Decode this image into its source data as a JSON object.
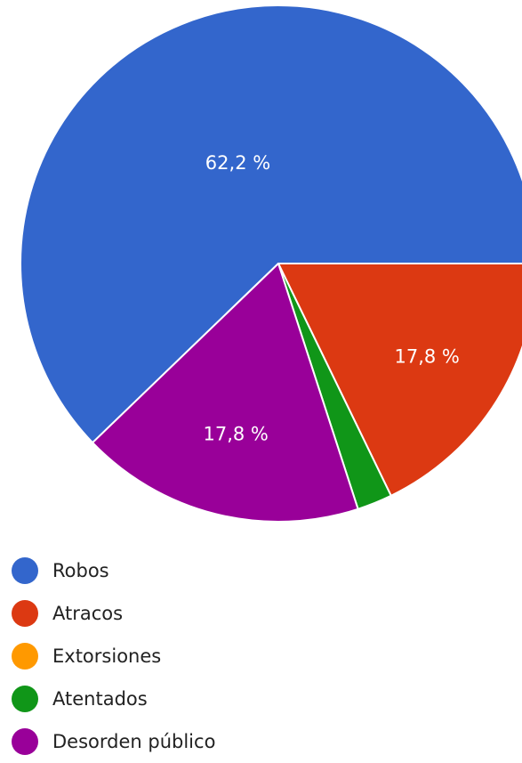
{
  "chart_data": {
    "type": "pie",
    "categories": [
      "Robos",
      "Atracos",
      "Extorsiones",
      "Atentados",
      "Desorden público"
    ],
    "values": [
      62.2,
      17.8,
      0,
      2.2,
      17.8
    ],
    "data_labels": [
      "62,2 %",
      "17,8 %",
      "",
      "",
      "17,8 %"
    ],
    "colors": [
      "#3366cc",
      "#dc3912",
      "#ff9900",
      "#109618",
      "#990099"
    ],
    "legend_position": "bottom"
  }
}
